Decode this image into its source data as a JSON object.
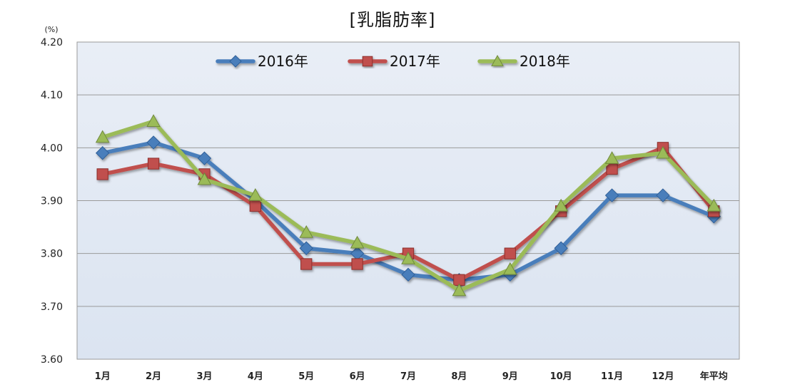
{
  "chart_data": {
    "type": "line",
    "title": "[乳脂肪率]",
    "unit": "(%)",
    "categories": [
      "1月",
      "2月",
      "3月",
      "4月",
      "5月",
      "6月",
      "7月",
      "8月",
      "9月",
      "10月",
      "11月",
      "12月",
      "年平均"
    ],
    "ylim": [
      3.6,
      4.2
    ],
    "yticks": [
      "3.60",
      "3.70",
      "3.80",
      "3.90",
      "4.00",
      "4.10",
      "4.20"
    ],
    "grid": true,
    "legend_position": "top-center",
    "series": [
      {
        "name": "2016年",
        "marker": "diamond",
        "color": "#4a7ebb",
        "values": [
          3.99,
          4.01,
          3.98,
          3.9,
          3.81,
          3.8,
          3.76,
          3.75,
          3.76,
          3.81,
          3.91,
          3.91,
          3.87
        ]
      },
      {
        "name": "2017年",
        "marker": "square",
        "color": "#c0504d",
        "values": [
          3.95,
          3.97,
          3.95,
          3.89,
          3.78,
          3.78,
          3.8,
          3.75,
          3.8,
          3.88,
          3.96,
          4.0,
          3.88
        ]
      },
      {
        "name": "2018年",
        "marker": "triangle",
        "color": "#9bbb59",
        "values": [
          4.02,
          4.05,
          3.94,
          3.91,
          3.84,
          3.82,
          3.79,
          3.73,
          3.77,
          3.89,
          3.98,
          3.99,
          3.89
        ]
      }
    ]
  }
}
